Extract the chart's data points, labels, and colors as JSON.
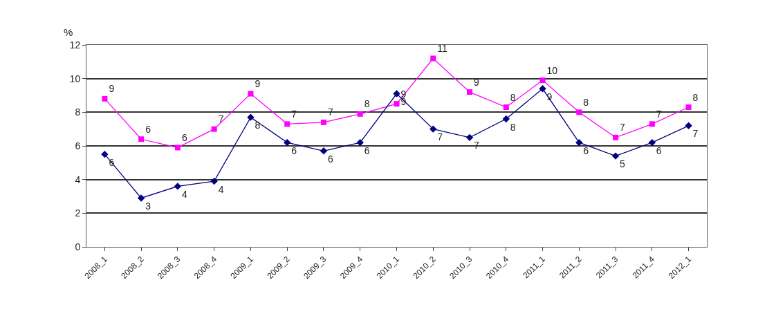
{
  "chart_data": {
    "type": "line",
    "ylabel": "%",
    "categories": [
      "2008_1",
      "2008_2",
      "2008_3",
      "2008_4",
      "2009_1",
      "2009_2",
      "2009_3",
      "2009_4",
      "2010_1",
      "2010_2",
      "2010_3",
      "2010_4",
      "2011_1",
      "2011_2",
      "2011_3",
      "2011_4",
      "2012_1"
    ],
    "series": [
      {
        "color": "#ff00ff",
        "marker": "square",
        "values": [
          8.8,
          6.4,
          5.9,
          7.0,
          9.1,
          7.3,
          7.4,
          7.9,
          8.5,
          11.2,
          9.2,
          8.3,
          9.9,
          8.0,
          6.5,
          7.3,
          8.3
        ],
        "value_labels": [
          "9",
          "6",
          "6",
          "7",
          "9",
          "7",
          "7",
          "8",
          "9",
          "11",
          "9",
          "8",
          "10",
          "8",
          "7",
          "7",
          "8"
        ]
      },
      {
        "color": "#000080",
        "marker": "diamond",
        "values": [
          5.5,
          2.9,
          3.6,
          3.9,
          7.7,
          6.2,
          5.7,
          6.2,
          9.1,
          7.0,
          6.5,
          7.6,
          9.4,
          6.2,
          5.4,
          6.2,
          7.2
        ],
        "value_labels": [
          "6",
          "3",
          "4",
          "4",
          "8",
          "6",
          "6",
          "6",
          "9",
          "7",
          "7",
          "8",
          "9",
          "6",
          "5",
          "6",
          "7"
        ]
      }
    ],
    "ylim": [
      0,
      12
    ],
    "yticks": [
      0,
      2,
      4,
      6,
      8,
      10,
      12
    ],
    "grid": "y",
    "line_style": "solid"
  }
}
